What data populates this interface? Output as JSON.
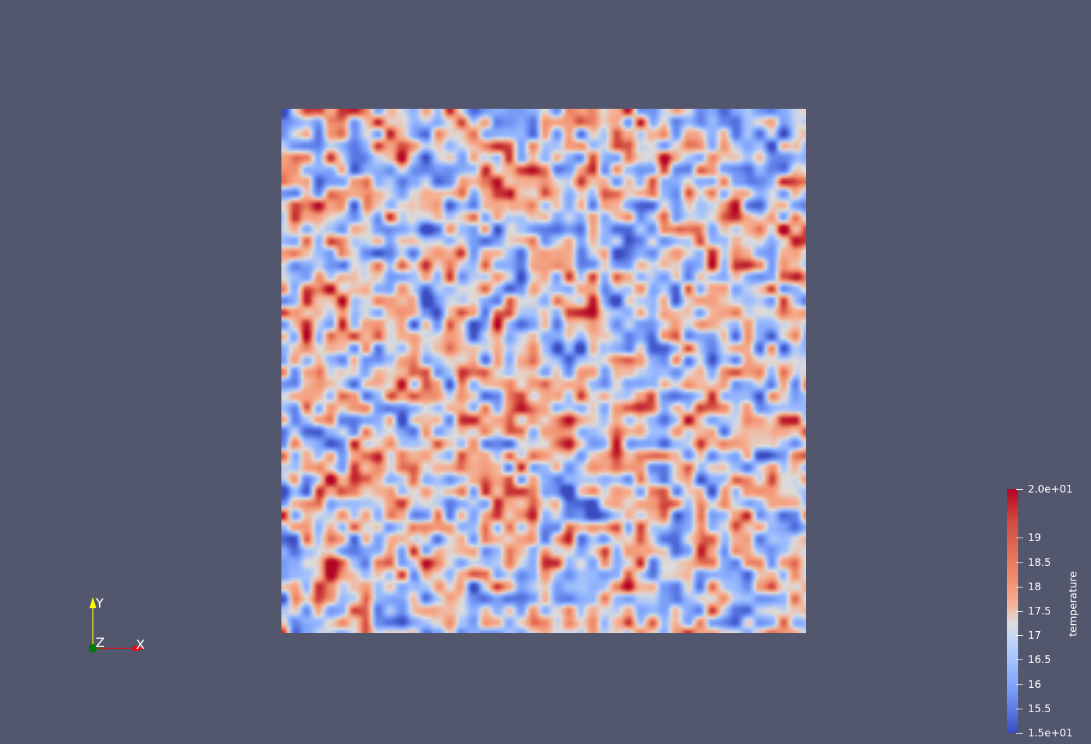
{
  "scene": {
    "background_color": "#52576e",
    "field": {
      "scalar": "temperature",
      "colormap": "Cool to Warm",
      "range": [
        15,
        20
      ],
      "colors": {
        "low": "#3b4cc0",
        "mid": "#dddcdc",
        "high": "#b40426"
      }
    }
  },
  "orientation_axes": {
    "x_label": "X",
    "y_label": "Y",
    "z_label": "Z",
    "x_color": "#ff0000",
    "y_color": "#ffff00",
    "z_color": "#00aa00"
  },
  "colorbar": {
    "title": "temperature",
    "ticks": [
      {
        "value": 20,
        "label": "2.0e+01"
      },
      {
        "value": 19,
        "label": "19"
      },
      {
        "value": 18.5,
        "label": "18.5"
      },
      {
        "value": 18,
        "label": "18"
      },
      {
        "value": 17.5,
        "label": "17.5"
      },
      {
        "value": 17,
        "label": "17"
      },
      {
        "value": 16.5,
        "label": "16.5"
      },
      {
        "value": 16,
        "label": "16"
      },
      {
        "value": 15.5,
        "label": "15.5"
      },
      {
        "value": 15,
        "label": "1.5e+01"
      }
    ]
  }
}
